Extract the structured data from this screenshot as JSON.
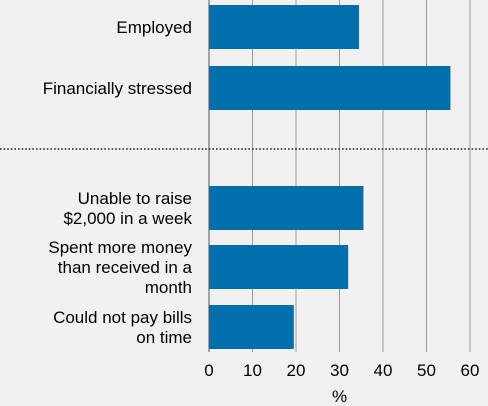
{
  "chart_data": {
    "type": "bar",
    "orientation": "horizontal",
    "categories": [
      "Employed",
      "Financially stressed",
      "Unable to raise\n$2,000 in a week",
      "Spent more money\nthan received in a\nmonth",
      "Could not pay bills\non time"
    ],
    "values": [
      34.5,
      55.5,
      35.5,
      32,
      19.5
    ],
    "groups": [
      {
        "categories": [
          "Employed",
          "Financially stressed"
        ]
      },
      {
        "categories": [
          "Unable to raise\n$2,000 in a week",
          "Spent more money\nthan received in a\nmonth",
          "Could not pay bills\non time"
        ]
      }
    ],
    "xlabel": "%",
    "xlim": [
      0,
      60
    ],
    "xticks": [
      0,
      10,
      20,
      30,
      40,
      50,
      60
    ],
    "grid": "vertical",
    "bar_color": "#006fab",
    "grid_color": "#9a9a9a",
    "separator": "dotted"
  }
}
